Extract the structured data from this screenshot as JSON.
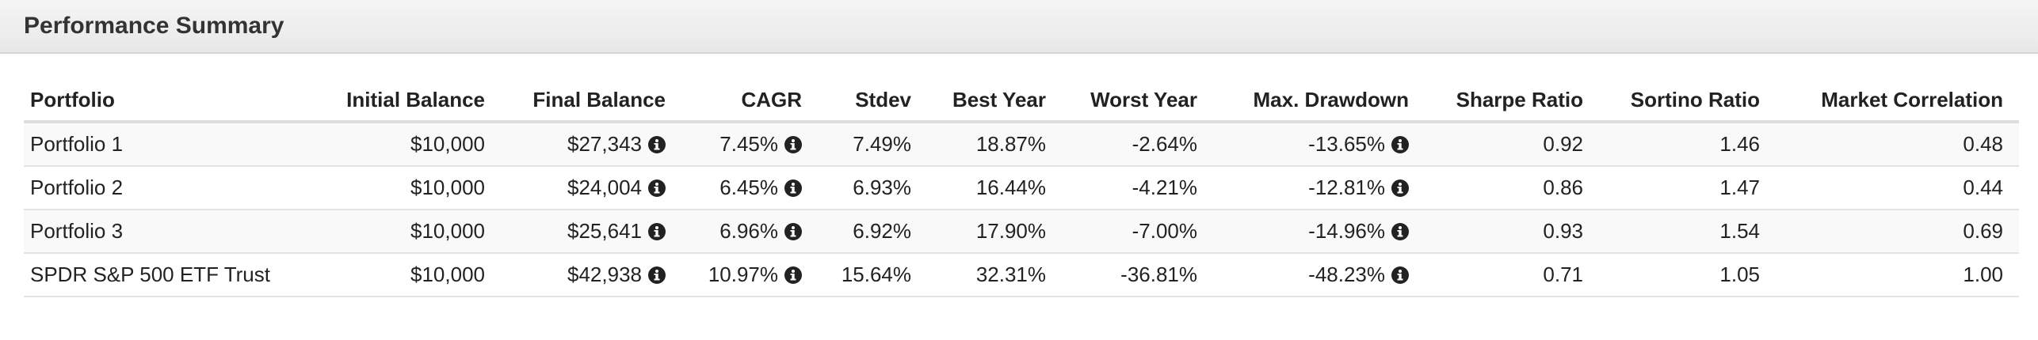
{
  "header": {
    "title": "Performance Summary"
  },
  "table": {
    "columns": [
      "Portfolio",
      "Initial Balance",
      "Final Balance",
      "CAGR",
      "Stdev",
      "Best Year",
      "Worst Year",
      "Max. Drawdown",
      "Sharpe Ratio",
      "Sortino Ratio",
      "Market Correlation"
    ],
    "rows": [
      [
        "Portfolio 1",
        "$10,000",
        "$27,343",
        "7.45%",
        "7.49%",
        "18.87%",
        "-2.64%",
        "-13.65%",
        "0.92",
        "1.46",
        "0.48"
      ],
      [
        "Portfolio 2",
        "$10,000",
        "$24,004",
        "6.45%",
        "6.93%",
        "16.44%",
        "-4.21%",
        "-12.81%",
        "0.86",
        "1.47",
        "0.44"
      ],
      [
        "Portfolio 3",
        "$10,000",
        "$25,641",
        "6.96%",
        "6.92%",
        "17.90%",
        "-7.00%",
        "-14.96%",
        "0.93",
        "1.54",
        "0.69"
      ],
      [
        "SPDR S&P 500 ETF Trust",
        "$10,000",
        "$42,938",
        "10.97%",
        "15.64%",
        "32.31%",
        "-36.81%",
        "-48.23%",
        "0.71",
        "1.05",
        "1.00"
      ]
    ]
  }
}
